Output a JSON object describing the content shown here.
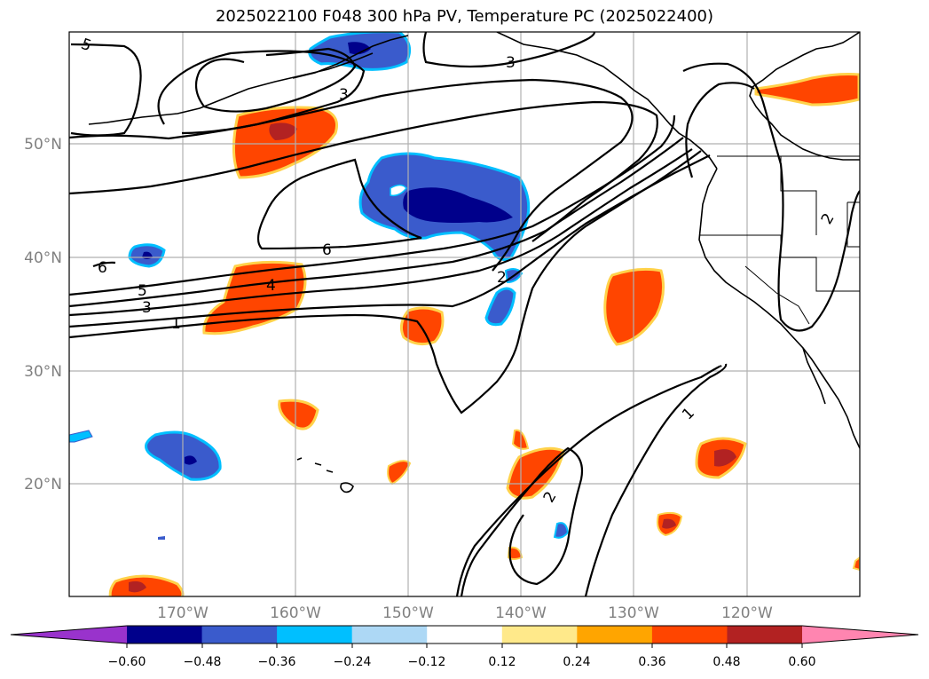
{
  "title": "2025022100 F048 300 hPa PV, Temperature PC (2025022400)",
  "map": {
    "lon_labels": [
      "170°W",
      "160°W",
      "150°W",
      "140°W",
      "130°W",
      "120°W"
    ],
    "lat_labels": [
      "50°N",
      "40°N",
      "30°N",
      "20°N"
    ],
    "contour_labels": [
      "5",
      "3",
      "3",
      "6",
      "6",
      "5",
      "3",
      "1",
      "4",
      "2",
      "2",
      "1",
      "2"
    ]
  },
  "colorbar": {
    "ticks": [
      "−0.60",
      "−0.48",
      "−0.36",
      "−0.24",
      "−0.12",
      "0.12",
      "0.24",
      "0.36",
      "0.48",
      "0.60"
    ],
    "colors": [
      "#9933cc",
      "#00008b",
      "#3a5bcc",
      "#00bfff",
      "#add8f5",
      "#ffffff",
      "#ffe98a",
      "#ffa500",
      "#ff4500",
      "#b22222",
      "#ff85b0"
    ]
  }
}
